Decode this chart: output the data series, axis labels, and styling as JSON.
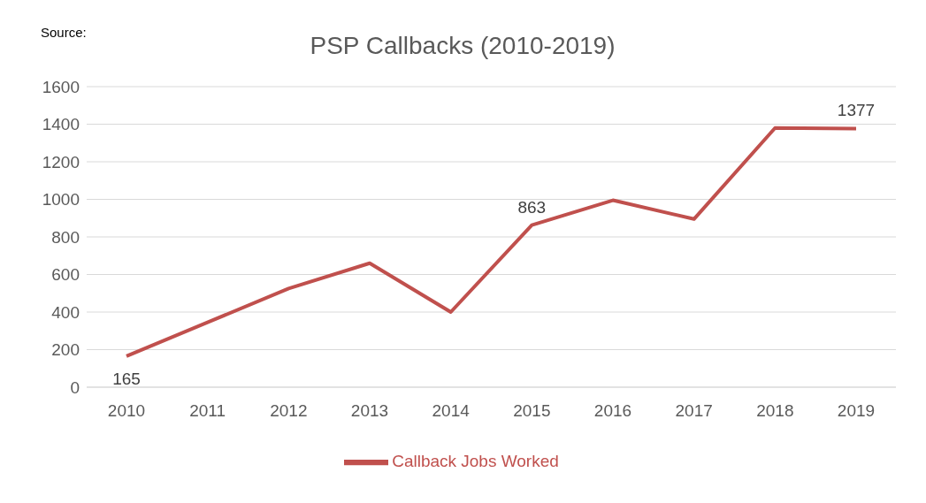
{
  "chart_data": {
    "type": "line",
    "title": "PSP Callbacks (2010-2019)",
    "annotations": [
      "Source:"
    ],
    "categories": [
      "2010",
      "2011",
      "2012",
      "2013",
      "2014",
      "2015",
      "2016",
      "2017",
      "2018",
      "2019"
    ],
    "series": [
      {
        "name": "Callback Jobs Worked",
        "color": "#c0504d",
        "values": [
          165,
          345,
          525,
          660,
          400,
          863,
          995,
          895,
          1380,
          1377
        ],
        "value_labels": [
          "165",
          null,
          null,
          null,
          null,
          "863",
          null,
          null,
          null,
          "1377"
        ]
      }
    ],
    "ylim": [
      0,
      1600
    ],
    "yticks": [
      0,
      200,
      400,
      600,
      800,
      1000,
      1200,
      1400,
      1600
    ],
    "grid": "y",
    "legend": "bottom",
    "marker": "none",
    "line_style": "solid"
  }
}
